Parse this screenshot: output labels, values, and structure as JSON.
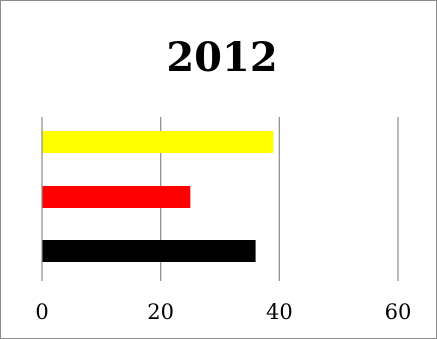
{
  "chart_data": {
    "type": "bar",
    "orientation": "horizontal",
    "title": "2012",
    "xlabel": "",
    "ylabel": "",
    "xlim": [
      0,
      60
    ],
    "x_ticks": [
      0,
      20,
      40,
      60
    ],
    "grid": "vertical",
    "legend": "none",
    "bars": [
      {
        "value": 39,
        "color": "#ffff00"
      },
      {
        "value": 25,
        "color": "#ff0000"
      },
      {
        "value": 36,
        "color": "#000000"
      }
    ]
  }
}
